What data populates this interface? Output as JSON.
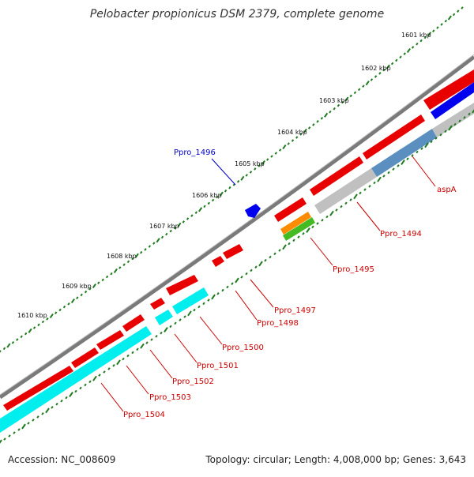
{
  "title": "Pelobacter propionicus DSM 2379, complete genome",
  "footer": {
    "accession": "Accession: NC_008609",
    "summary": "Topology: circular; Length: 4,008,000 bp; Genes: 3,643"
  },
  "scale": {
    "ticks": [
      "1601 kbp",
      "1602 kbp",
      "1603 kbp",
      "1604 kbp",
      "1605 kbp",
      "1606 kbp",
      "1607 kbp",
      "1608 kbp",
      "1609 kbp",
      "1610 kbp"
    ]
  },
  "colors": {
    "backbone": "#808080",
    "cds": "#ff0000",
    "blast": "#00ffff",
    "dots": "#1e7a1e",
    "label_red": "#cc0000",
    "label_blue": "#0000cc"
  },
  "gene_labels": [
    {
      "name": "aspA",
      "color": "red"
    },
    {
      "name": "Ppro_1494",
      "color": "red"
    },
    {
      "name": "Ppro_1495",
      "color": "red"
    },
    {
      "name": "Ppro_1496",
      "color": "blue"
    },
    {
      "name": "Ppro_1497",
      "color": "red"
    },
    {
      "name": "Ppro_1498",
      "color": "red"
    },
    {
      "name": "Ppro_1500",
      "color": "red"
    },
    {
      "name": "Ppro_1501",
      "color": "red"
    },
    {
      "name": "Ppro_1502",
      "color": "red"
    },
    {
      "name": "Ppro_1503",
      "color": "red"
    },
    {
      "name": "Ppro_1504",
      "color": "red"
    }
  ]
}
